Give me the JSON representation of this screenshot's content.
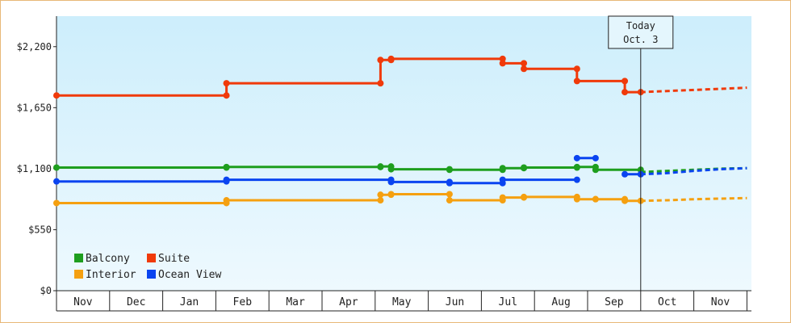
{
  "chart_data": {
    "type": "line",
    "title": "",
    "xlabel": "",
    "ylabel": "",
    "ylim": [
      0,
      2475
    ],
    "yticks": [
      {
        "value": 0,
        "label": "$0"
      },
      {
        "value": 550,
        "label": "$550"
      },
      {
        "value": 1100,
        "label": "$1,100"
      },
      {
        "value": 1650,
        "label": "$1,650"
      },
      {
        "value": 2200,
        "label": "$2,200"
      }
    ],
    "months": [
      "Nov",
      "Dec",
      "Jan",
      "Feb",
      "Mar",
      "Apr",
      "May",
      "Jun",
      "Jul",
      "Aug",
      "Sep",
      "Oct",
      "Nov"
    ],
    "today": {
      "line1": "Today",
      "line2": "Oct. 3",
      "x": 11.0
    },
    "grid": false,
    "legend_position": "bottom-left",
    "series": [
      {
        "name": "Balcony",
        "color": "#1e9e1e",
        "points": [
          [
            0.0,
            1110
          ],
          [
            3.2,
            1110
          ],
          [
            3.2,
            1115
          ],
          [
            6.1,
            1115
          ],
          [
            6.1,
            1120
          ],
          [
            6.3,
            1120
          ],
          [
            6.3,
            1095
          ],
          [
            7.4,
            1095
          ],
          [
            7.4,
            1090
          ],
          [
            8.4,
            1090
          ],
          [
            8.4,
            1105
          ],
          [
            8.8,
            1105
          ],
          [
            8.8,
            1110
          ],
          [
            9.8,
            1110
          ],
          [
            9.8,
            1115
          ],
          [
            10.15,
            1115
          ],
          [
            10.15,
            1090
          ],
          [
            11.0,
            1090
          ]
        ],
        "forecast": [
          [
            11.0,
            1070
          ],
          [
            11.5,
            1080
          ],
          [
            12.0,
            1090
          ],
          [
            12.5,
            1100
          ],
          [
            13.0,
            1105
          ]
        ]
      },
      {
        "name": "Suite",
        "color": "#f03a0a",
        "points": [
          [
            0.0,
            1760
          ],
          [
            3.2,
            1760
          ],
          [
            3.2,
            1870
          ],
          [
            6.1,
            1870
          ],
          [
            6.1,
            2080
          ],
          [
            6.3,
            2080
          ],
          [
            6.3,
            2090
          ],
          [
            8.4,
            2090
          ],
          [
            8.4,
            2050
          ],
          [
            8.8,
            2050
          ],
          [
            8.8,
            2000
          ],
          [
            9.8,
            2000
          ],
          [
            9.8,
            1890
          ],
          [
            10.7,
            1890
          ],
          [
            10.7,
            1790
          ],
          [
            11.0,
            1790
          ]
        ],
        "forecast": [
          [
            11.0,
            1790
          ],
          [
            11.5,
            1800
          ],
          [
            12.0,
            1810
          ],
          [
            12.5,
            1820
          ],
          [
            13.0,
            1830
          ]
        ]
      },
      {
        "name": "Interior",
        "color": "#f5a010",
        "points": [
          [
            0.0,
            790
          ],
          [
            3.2,
            790
          ],
          [
            3.2,
            815
          ],
          [
            6.1,
            815
          ],
          [
            6.1,
            865
          ],
          [
            6.3,
            865
          ],
          [
            6.3,
            870
          ],
          [
            7.4,
            870
          ],
          [
            7.4,
            815
          ],
          [
            8.4,
            815
          ],
          [
            8.4,
            840
          ],
          [
            8.8,
            840
          ],
          [
            8.8,
            845
          ],
          [
            9.8,
            845
          ],
          [
            9.8,
            825
          ],
          [
            10.15,
            825
          ],
          [
            10.15,
            825
          ],
          [
            10.7,
            825
          ],
          [
            10.7,
            810
          ],
          [
            11.0,
            810
          ]
        ],
        "forecast": [
          [
            11.0,
            810
          ],
          [
            11.5,
            815
          ],
          [
            12.0,
            825
          ],
          [
            12.5,
            830
          ],
          [
            13.0,
            835
          ]
        ]
      },
      {
        "name": "Ocean View",
        "color": "#0a44f0",
        "points": [
          [
            0.0,
            985
          ],
          [
            3.2,
            985
          ],
          [
            3.2,
            1000
          ],
          [
            6.3,
            1000
          ],
          [
            6.3,
            980
          ],
          [
            7.4,
            980
          ],
          [
            7.4,
            970
          ],
          [
            8.4,
            970
          ],
          [
            8.4,
            1000
          ],
          [
            9.8,
            1000
          ]
        ],
        "extra_segments": [
          [
            [
              9.8,
              1195
            ],
            [
              10.15,
              1195
            ]
          ],
          [
            [
              10.7,
              1050
            ],
            [
              11.0,
              1050
            ]
          ]
        ],
        "forecast": [
          [
            11.0,
            1050
          ],
          [
            11.5,
            1060
          ],
          [
            12.0,
            1080
          ],
          [
            12.5,
            1095
          ],
          [
            13.0,
            1105
          ]
        ]
      }
    ]
  }
}
